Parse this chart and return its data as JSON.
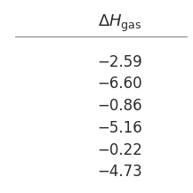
{
  "title_math": "$\\Delta H_{\\mathrm{gas}}$",
  "values": [
    "−2.59",
    "−6.60",
    "−0.86",
    "−5.16",
    "−0.22",
    "−4.73"
  ],
  "bg_color": "#ffffff",
  "text_color": "#2b2b2b",
  "line_color": "#888888",
  "title_fontsize": 13,
  "value_fontsize": 12,
  "fig_width": 2.17,
  "fig_height": 2.17,
  "dpi": 100
}
